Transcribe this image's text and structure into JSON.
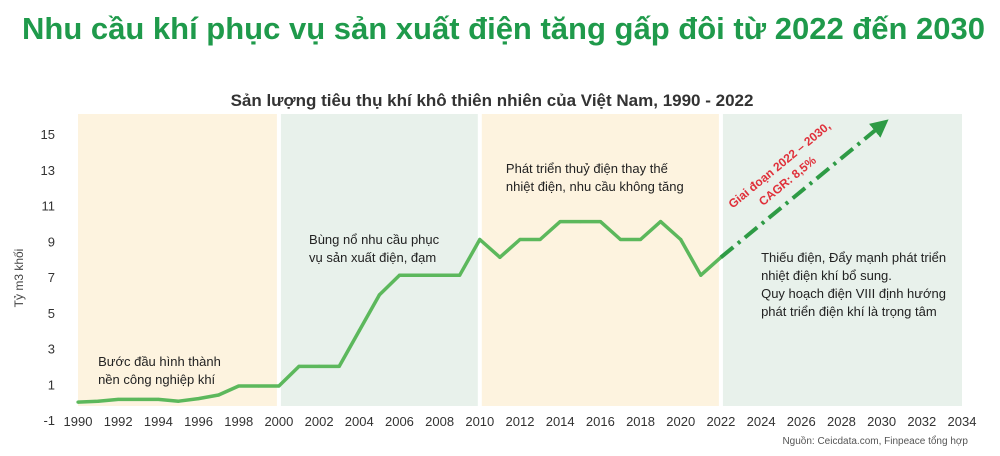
{
  "page": {
    "headline": "Nhu cầu khí phục vụ sản xuất điện tăng gấp đôi từ 2022 đến 2030",
    "source": "Nguồn: Ceicdata.com, Finpeace tổng hợp"
  },
  "chart_data": {
    "type": "line",
    "title": "Sản lượng tiêu thụ khí khô thiên nhiên của Việt Nam, 1990  - 2022",
    "ylabel": "Tỷ m3 khối",
    "xlabel": "",
    "xlim": [
      1990,
      2034
    ],
    "ylim": [
      -1,
      15
    ],
    "yticks": [
      -1,
      1,
      3,
      5,
      7,
      9,
      11,
      13,
      15
    ],
    "xticks": [
      1990,
      1992,
      1994,
      1996,
      1998,
      2000,
      2002,
      2004,
      2006,
      2008,
      2010,
      2012,
      2014,
      2016,
      2018,
      2020,
      2022,
      2024,
      2026,
      2028,
      2030,
      2032,
      2034
    ],
    "grid": false,
    "colors": {
      "line": "#5cb85c",
      "forecast": "#2e9b45",
      "annotation_red": "#e0303a",
      "title_green": "#1f9a4b"
    },
    "periods": [
      {
        "from": 1990,
        "to": 2000,
        "color": "#fdf3df",
        "label": [
          "Bước đầu hình thành",
          "nền công nghiệp khí"
        ]
      },
      {
        "from": 2000,
        "to": 2010,
        "color": "#e8f1eb",
        "label": [
          "Bùng nổ nhu cầu phục",
          "vụ sản xuất điện, đạm"
        ]
      },
      {
        "from": 2010,
        "to": 2022,
        "color": "#fdf3df",
        "label": [
          "Phát triển thuỷ điện thay thế",
          "nhiệt điện, nhu cầu không tăng"
        ]
      },
      {
        "from": 2022,
        "to": 2034,
        "color": "#e8f1eb",
        "label": [
          "Thiếu điện, Đẩy mạnh phát triển",
          "nhiệt điện khí  bổ sung.",
          "Quy hoạch điện VIII định hướng",
          "phát triển điện khí là trọng tâm"
        ]
      }
    ],
    "series": [
      {
        "x": [
          1990,
          1991,
          1992,
          1993,
          1994,
          1995,
          1996,
          1997,
          1998,
          1999,
          2000,
          2001,
          2002,
          2003,
          2004,
          2005,
          2006,
          2007,
          2008,
          2009,
          2010,
          2011,
          2012,
          2013,
          2014,
          2015,
          2016,
          2017,
          2018,
          2019,
          2020,
          2021,
          2022
        ],
        "values": [
          0.0,
          0.05,
          0.15,
          0.15,
          0.15,
          0.05,
          0.2,
          0.4,
          0.9,
          0.9,
          0.9,
          2.0,
          2.0,
          2.0,
          4.0,
          6.0,
          7.1,
          7.1,
          7.1,
          7.1,
          9.1,
          8.1,
          9.1,
          9.1,
          10.1,
          10.1,
          10.1,
          9.1,
          9.1,
          10.1,
          9.1,
          7.1,
          8.1
        ]
      }
    ],
    "forecast": {
      "x": [
        2022,
        2030
      ],
      "values": [
        8.1,
        15.5
      ],
      "label": [
        "Giai đoạn 2022 – 2030,",
        "CAGR: 8,5%"
      ]
    }
  }
}
